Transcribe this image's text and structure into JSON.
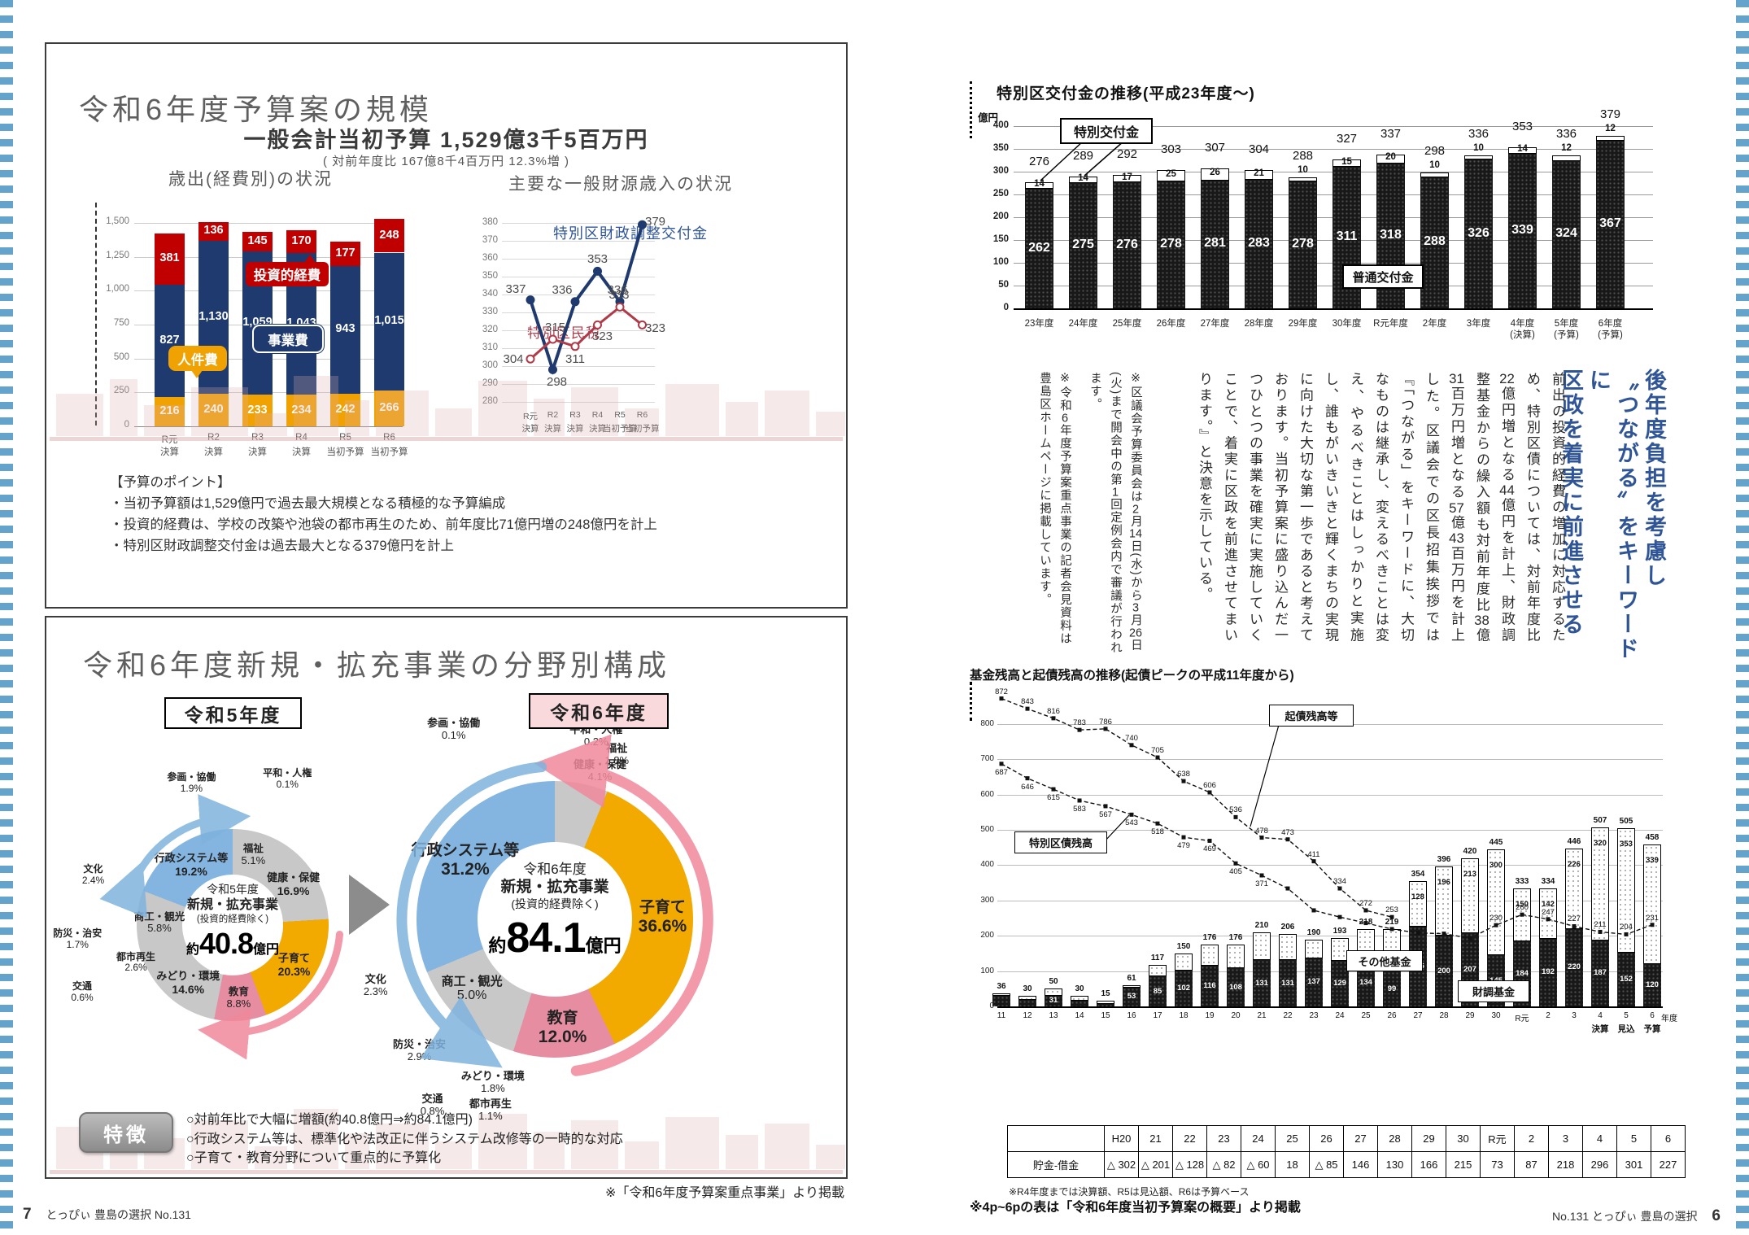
{
  "left_page": {
    "page_number": "7",
    "footer_text": "とっぴぃ 豊島の選択  No.131",
    "budget_box": {
      "title": "令和6年度予算案の規模",
      "subtitle": "一般会計当初予算 1,529億3千5百万円",
      "subtitle_note": "( 対前年度比 167億8千4百万円 12.3%増 )",
      "points_title": "【予算のポイント】",
      "points": [
        "・当初予算額は1,529億円で過去最大規模となる積極的な予算編成",
        "・投資的経費は、学校の改築や池袋の都市再生のため、前年度比71億円増の248億円を計上",
        "・特別区財政調整交付金は過去最大となる379億円を計上"
      ]
    },
    "fields_box": {
      "title": "令和6年度新規・拡充事業の分野別構成",
      "year_left_label": "令和5年度",
      "year_right_label": "令和6年度",
      "feature_button": "特徴",
      "features": [
        "○対前年比で大幅に増額(約40.8億円⇒約84.1億円)",
        "○行政システム等は、標準化や法改正に伴うシステム改修等の一時的な対応",
        "○子育て・教育分野について重点的に予算化"
      ],
      "footnote": "※「令和6年度予算案重点事業」より掲載"
    }
  },
  "right_page": {
    "headline_lines": [
      "後年度負担を考慮し",
      "〝つながる〟をキーワードに",
      "区政を着実に前進させる"
    ],
    "article_body": "前出の投資的経費の増加に対応するため、特別区債については、対前年度比22億円増となる44億円を計上、財政調整基金からの繰入額も対前年度比38億31百万円増となる57億43百万円を計上した。区議会での区長招集挨拶では『「つながる」をキーワードに、大切なものは継承し、変えるべきことは変え、やるべきことはしっかりと実施し、誰もがいきいきと輝くまちの実現に向けた大切な第一歩であると考えております。当初予算案に盛り込んだ一つひとつの事業を確実に実施していくことで、着実に区政を前進させてまいります。』と決意を示している。",
    "article_notes": [
      "※区議会予算委員会は2月14日(水)から3月26日(火)まで開会中の第1回定例会内で審議が行われます。",
      "※令和6年度予算案重点事業の記者会見資料は豊島区ホームページに掲載しています。"
    ],
    "table_note": "※R4年度までは決算額、R5は見込額、R6は予算ベース",
    "source_note": "※4p~6pの表は「令和6年度当初予算案の概要」より掲載",
    "footer_text": "No.131  とっぴぃ 豊島の選択",
    "page_number": "6"
  },
  "chart_data": [
    {
      "id": "expenditure",
      "type": "bar",
      "stacked": true,
      "title": "歳出(経費別)の状況",
      "categories": [
        [
          "R元",
          "決算"
        ],
        [
          "R2",
          "決算"
        ],
        [
          "R3",
          "決算"
        ],
        [
          "R4",
          "決算"
        ],
        [
          "R5",
          "当初予算"
        ],
        [
          "R6",
          "当初予算"
        ]
      ],
      "series": [
        {
          "name": "人件費",
          "color": "#f0a202",
          "values": [
            216,
            240,
            233,
            234,
            242,
            266
          ]
        },
        {
          "name": "事業費",
          "color": "#1f3a6e",
          "values": [
            827,
            1130,
            1059,
            1043,
            943,
            1015
          ]
        },
        {
          "name": "投資的経費",
          "color": "#c00000",
          "values": [
            381,
            136,
            145,
            170,
            177,
            248
          ]
        }
      ],
      "ylabel": "",
      "ylim": [
        0,
        1500
      ],
      "ytick": 250,
      "divider_after_index": 3
    },
    {
      "id": "revenue",
      "type": "line",
      "title": "主要な一般財源歳入の状況",
      "categories": [
        [
          "R元",
          "決算"
        ],
        [
          "R2",
          "決算"
        ],
        [
          "R3",
          "決算"
        ],
        [
          "R4",
          "決算"
        ],
        [
          "R5",
          "当初予算"
        ],
        [
          "R6",
          "当初予算"
        ]
      ],
      "series": [
        {
          "name": "特別区財政調整交付金",
          "color": "#1f3a6e",
          "marker": "filled",
          "values": [
            337,
            298,
            336,
            353,
            336,
            379
          ]
        },
        {
          "name": "特別区民税",
          "color": "#b03a48",
          "marker": "open",
          "values": [
            304,
            315,
            311,
            323,
            333,
            323
          ]
        }
      ],
      "ylim": [
        280,
        380
      ],
      "ytick": 10
    },
    {
      "id": "kofukin",
      "type": "bar",
      "stacked": true,
      "title": "特別区交付金の推移(平成23年度〜)",
      "unit": "億円",
      "categories": [
        [
          "23年度"
        ],
        [
          "24年度"
        ],
        [
          "25年度"
        ],
        [
          "26年度"
        ],
        [
          "27年度"
        ],
        [
          "28年度"
        ],
        [
          "29年度"
        ],
        [
          "30年度"
        ],
        [
          "R元年度"
        ],
        [
          "2年度"
        ],
        [
          "3年度"
        ],
        [
          "4年度",
          "(決算)"
        ],
        [
          "5年度",
          "(予算)"
        ],
        [
          "6年度",
          "(予算)"
        ]
      ],
      "series": [
        {
          "name": "普通交付金",
          "values": [
            262,
            275,
            276,
            278,
            281,
            283,
            278,
            311,
            318,
            288,
            326,
            339,
            324,
            367
          ]
        },
        {
          "name": "特別交付金",
          "values": [
            14,
            14,
            17,
            25,
            26,
            21,
            10,
            15,
            20,
            10,
            10,
            14,
            12,
            12
          ]
        }
      ],
      "totals": [
        276,
        289,
        292,
        303,
        307,
        304,
        288,
        327,
        337,
        298,
        336,
        353,
        336,
        379
      ],
      "ylim": [
        0,
        400
      ],
      "ytick": 50,
      "divider_after_index": 11
    },
    {
      "id": "kikin",
      "type": "bar-line",
      "title": "基金残高と起債残高の推移(起債ピークの平成11年度から)",
      "categories": [
        "11",
        "12",
        "13",
        "14",
        "15",
        "16",
        "17",
        "18",
        "19",
        "20",
        "21",
        "22",
        "23",
        "24",
        "25",
        "26",
        "27",
        "28",
        "29",
        "30",
        "R元",
        "2",
        "3",
        "4",
        "5",
        "6"
      ],
      "category_unit": "年度",
      "sub_labels": [
        {
          "index": 23,
          "text": "決算"
        },
        {
          "index": 24,
          "text": "見込"
        },
        {
          "index": 25,
          "text": "予算"
        }
      ],
      "bar_series": [
        {
          "name": "財調基金",
          "values": [
            29,
            19,
            31,
            16,
            8,
            53,
            85,
            102,
            116,
            108,
            131,
            131,
            137,
            129,
            134,
            99,
            226,
            200,
            207,
            145,
            184,
            192,
            220,
            187,
            152,
            120
          ]
        },
        {
          "name": "その他基金",
          "values": [
            7,
            11,
            19,
            14,
            7,
            8,
            32,
            48,
            60,
            68,
            79,
            75,
            53,
            64,
            84,
            120,
            128,
            196,
            213,
            300,
            150,
            142,
            226,
            320,
            353,
            339
          ]
        }
      ],
      "totals": [
        36,
        30,
        50,
        30,
        15,
        61,
        117,
        150,
        176,
        176,
        210,
        206,
        190,
        193,
        218,
        219,
        354,
        396,
        420,
        445,
        333,
        334,
        446,
        507,
        505,
        458
      ],
      "line_series": [
        {
          "name": "起債残高等",
          "values": [
            872,
            843,
            816,
            783,
            786,
            740,
            705,
            638,
            606,
            536,
            478,
            473,
            411,
            334,
            272,
            253
          ]
        },
        {
          "name": "特別区債残高",
          "values": [
            687,
            646,
            615,
            583,
            567,
            543,
            518,
            479,
            469,
            405,
            371,
            334,
            272,
            253,
            236,
            219,
            208,
            206,
            193,
            230,
            260,
            247,
            227,
            211,
            204,
            231
          ]
        }
      ],
      "ylim": [
        0,
        800
      ],
      "ytick": 100,
      "divider_after_index": 23
    },
    {
      "id": "donut_r5",
      "type": "pie",
      "center_lines": [
        "令和5年度",
        "新規・拡充事業",
        "(投資的経費除く)"
      ],
      "total_prefix": "約",
      "total_value": "40.8",
      "total_suffix": "億円",
      "segments": [
        {
          "label": "参画・協働",
          "pct": 1.9,
          "color": "#c8c8c8"
        },
        {
          "label": "平和・人権",
          "pct": 0.1,
          "color": "#c8c8c8"
        },
        {
          "label": "福祉",
          "pct": 5.1,
          "color": "#c8c8c8"
        },
        {
          "label": "健康・保健",
          "pct": 16.9,
          "color": "#c8c8c8"
        },
        {
          "label": "子育て",
          "pct": 20.3,
          "color": "#f2a900"
        },
        {
          "label": "教育",
          "pct": 8.8,
          "color": "#e78da1"
        },
        {
          "label": "みどり・環境",
          "pct": 14.6,
          "color": "#c8c8c8"
        },
        {
          "label": "交通",
          "pct": 0.6,
          "color": "#c8c8c8"
        },
        {
          "label": "都市再生",
          "pct": 2.6,
          "color": "#c8c8c8"
        },
        {
          "label": "防災・治安",
          "pct": 1.7,
          "color": "#c8c8c8"
        },
        {
          "label": "商工・観光",
          "pct": 5.8,
          "color": "#c8c8c8"
        },
        {
          "label": "文化",
          "pct": 2.4,
          "color": "#c8c8c8"
        },
        {
          "label": "行政システム等",
          "pct": 19.2,
          "color": "#84b5e0"
        }
      ]
    },
    {
      "id": "donut_r6",
      "type": "pie",
      "center_lines": [
        "令和6年度",
        "新規・拡充事業",
        "(投資的経費除く)"
      ],
      "total_prefix": "約",
      "total_value": "84.1",
      "total_suffix": "億円",
      "segments": [
        {
          "label": "参画・協働",
          "pct": 0.1,
          "color": "#c8c8c8"
        },
        {
          "label": "平和・人権",
          "pct": 0.2,
          "color": "#c8c8c8"
        },
        {
          "label": "福祉",
          "pct": 1.8,
          "color": "#c8c8c8"
        },
        {
          "label": "健康・保健",
          "pct": 4.1,
          "color": "#c8c8c8"
        },
        {
          "label": "子育て",
          "pct": 36.6,
          "color": "#f2a900"
        },
        {
          "label": "教育",
          "pct": 12.0,
          "color": "#e78da1"
        },
        {
          "label": "みどり・環境",
          "pct": 1.8,
          "color": "#c8c8c8"
        },
        {
          "label": "都市再生",
          "pct": 1.1,
          "color": "#c8c8c8"
        },
        {
          "label": "交通",
          "pct": 0.8,
          "color": "#c8c8c8"
        },
        {
          "label": "防災・治安",
          "pct": 2.9,
          "color": "#c8c8c8"
        },
        {
          "label": "商工・観光",
          "pct": 5.0,
          "color": "#c8c8c8"
        },
        {
          "label": "文化",
          "pct": 2.3,
          "color": "#c8c8c8"
        },
        {
          "label": "行政システム等",
          "pct": 31.2,
          "color": "#84b5e0"
        }
      ]
    },
    {
      "id": "savings",
      "type": "table",
      "row_label": "貯金-借金",
      "columns": [
        "H20",
        "21",
        "22",
        "23",
        "24",
        "25",
        "26",
        "27",
        "28",
        "29",
        "30",
        "R元",
        "2",
        "3",
        "4",
        "5",
        "6"
      ],
      "values": [
        "△ 302",
        "△ 201",
        "△ 128",
        "△ 82",
        "△ 60",
        "18",
        "△ 85",
        "146",
        "130",
        "166",
        "215",
        "73",
        "87",
        "218",
        "296",
        "301",
        "227"
      ]
    }
  ]
}
